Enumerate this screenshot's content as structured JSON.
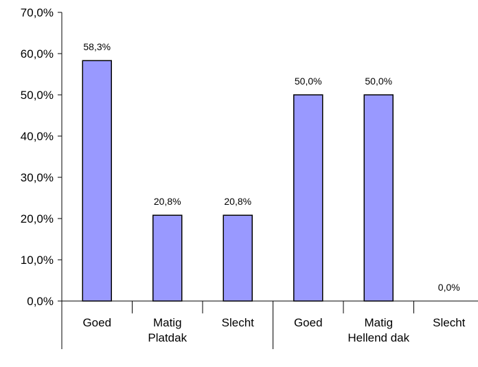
{
  "chart_data": {
    "type": "bar",
    "title": "",
    "xlabel": "",
    "ylabel": "",
    "ylim": [
      0,
      70
    ],
    "y_ticks": [
      "0,0%",
      "10,0%",
      "20,0%",
      "30,0%",
      "40,0%",
      "50,0%",
      "60,0%",
      "70,0%"
    ],
    "groups": [
      {
        "label": "Platdak",
        "categories": [
          "Goed",
          "Matig",
          "Slecht"
        ]
      },
      {
        "label": "Hellend dak",
        "categories": [
          "Goed",
          "Matig",
          "Slecht"
        ]
      }
    ],
    "values": [
      58.3,
      20.8,
      20.8,
      50.0,
      50.0,
      0.0
    ],
    "data_labels": [
      "58,3%",
      "20,8%",
      "20,8%",
      "50,0%",
      "50,0%",
      "0,0%"
    ],
    "bar_color": "#9999ff",
    "grid": false,
    "legend": "none"
  }
}
